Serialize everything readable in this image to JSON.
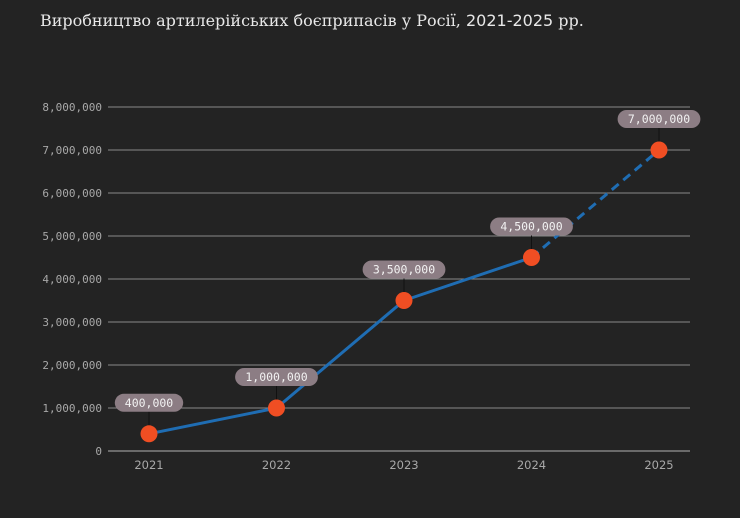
{
  "chart_data": {
    "type": "line",
    "title_main": "Виробництво артилерійських боєприпасів у Росії,",
    "title_years": "2021-2025",
    "title_suffix": "рр.",
    "categories": [
      "2021",
      "2022",
      "2023",
      "2024",
      "2025"
    ],
    "values": [
      400000,
      1000000,
      3500000,
      4500000,
      7000000
    ],
    "data_labels": [
      "400,000",
      "1,000,000",
      "3,500,000",
      "4,500,000",
      "7,000,000"
    ],
    "dashed_segment_from": "2024",
    "ylim": [
      0,
      8000000
    ],
    "yticks": [
      0,
      1000000,
      2000000,
      3000000,
      4000000,
      5000000,
      6000000,
      7000000,
      8000000
    ],
    "ytick_labels": [
      "0",
      "1,000,000",
      "2,000,000",
      "3,000,000",
      "4,000,000",
      "5,000,000",
      "6,000,000",
      "7,000,000",
      "8,000,000"
    ],
    "grid": true,
    "colors": {
      "line": "#1f6db3",
      "marker": "#f04e23",
      "label_bg": "#8c7d84",
      "background": "#232323",
      "grid": "#8a8a8a"
    }
  }
}
